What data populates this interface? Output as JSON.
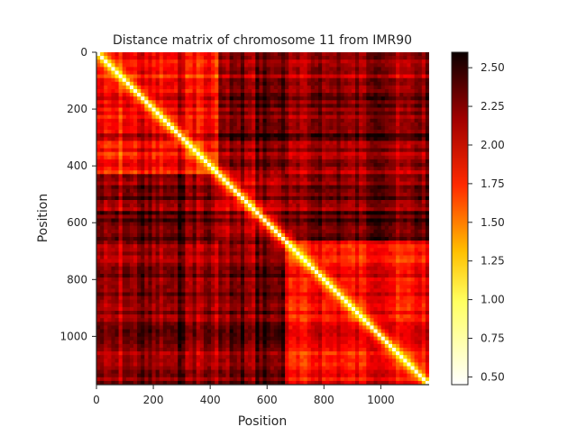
{
  "chart_data": {
    "type": "heatmap",
    "title": "Distance matrix of chromosome 11 from IMR90",
    "xlabel": "Position",
    "ylabel": "Position",
    "size": 1170,
    "xlim": [
      0,
      1170
    ],
    "ylim": [
      1170,
      0
    ],
    "xticks": [
      0,
      200,
      400,
      600,
      800,
      1000
    ],
    "yticks": [
      0,
      200,
      400,
      600,
      800,
      1000
    ],
    "colormap": "hot_r",
    "colorbar": {
      "vmin": 0.45,
      "vmax": 2.6,
      "ticks": [
        0.5,
        0.75,
        1.0,
        1.25,
        1.5,
        1.75,
        2.0,
        2.25,
        2.5
      ],
      "tick_labels": [
        "0.50",
        "0.75",
        "1.00",
        "1.25",
        "1.50",
        "1.75",
        "2.00",
        "2.25",
        "2.50"
      ]
    },
    "approximate_pattern": {
      "diagonal_value": 0.5,
      "block_boundaries": [
        0,
        430,
        660,
        1170
      ],
      "within_block_values": [
        1.85,
        1.95,
        1.8
      ],
      "off_block_value": 2.2,
      "darker_bands": [
        [
          160,
          200
        ],
        [
          260,
          300
        ],
        [
          470,
          520
        ],
        [
          560,
          620
        ],
        [
          640,
          660
        ]
      ],
      "lighter_bands": [
        [
          80,
          110
        ],
        [
          330,
          380
        ],
        [
          420,
          440
        ]
      ]
    },
    "colors": {
      "low": "#ffffff",
      "mid_low": "#ffff00",
      "mid": "#ff2a00",
      "high": "#0b0000"
    }
  }
}
